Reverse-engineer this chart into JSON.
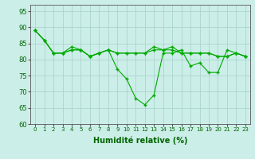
{
  "title": "",
  "xlabel": "Humidité relative (%)",
  "ylabel": "",
  "background_color": "#cceee8",
  "grid_color": "#aad4cc",
  "line_color": "#00aa00",
  "marker_color": "#00aa00",
  "xlim": [
    -0.5,
    23.5
  ],
  "ylim": [
    60,
    97
  ],
  "yticks": [
    60,
    65,
    70,
    75,
    80,
    85,
    90,
    95
  ],
  "xticks": [
    0,
    1,
    2,
    3,
    4,
    5,
    6,
    7,
    8,
    9,
    10,
    11,
    12,
    13,
    14,
    15,
    16,
    17,
    18,
    19,
    20,
    21,
    22,
    23
  ],
  "series": [
    [
      89,
      86,
      82,
      82,
      83,
      83,
      81,
      82,
      83,
      77,
      74,
      68,
      66,
      69,
      82,
      82,
      83,
      78,
      79,
      76,
      76,
      83,
      82,
      81
    ],
    [
      89,
      86,
      82,
      82,
      83,
      83,
      81,
      82,
      83,
      82,
      82,
      82,
      82,
      83,
      83,
      83,
      82,
      82,
      82,
      82,
      81,
      81,
      82,
      81
    ],
    [
      89,
      86,
      82,
      82,
      84,
      83,
      81,
      82,
      83,
      82,
      82,
      82,
      82,
      84,
      83,
      84,
      82,
      82,
      82,
      82,
      81,
      81,
      82,
      81
    ]
  ]
}
